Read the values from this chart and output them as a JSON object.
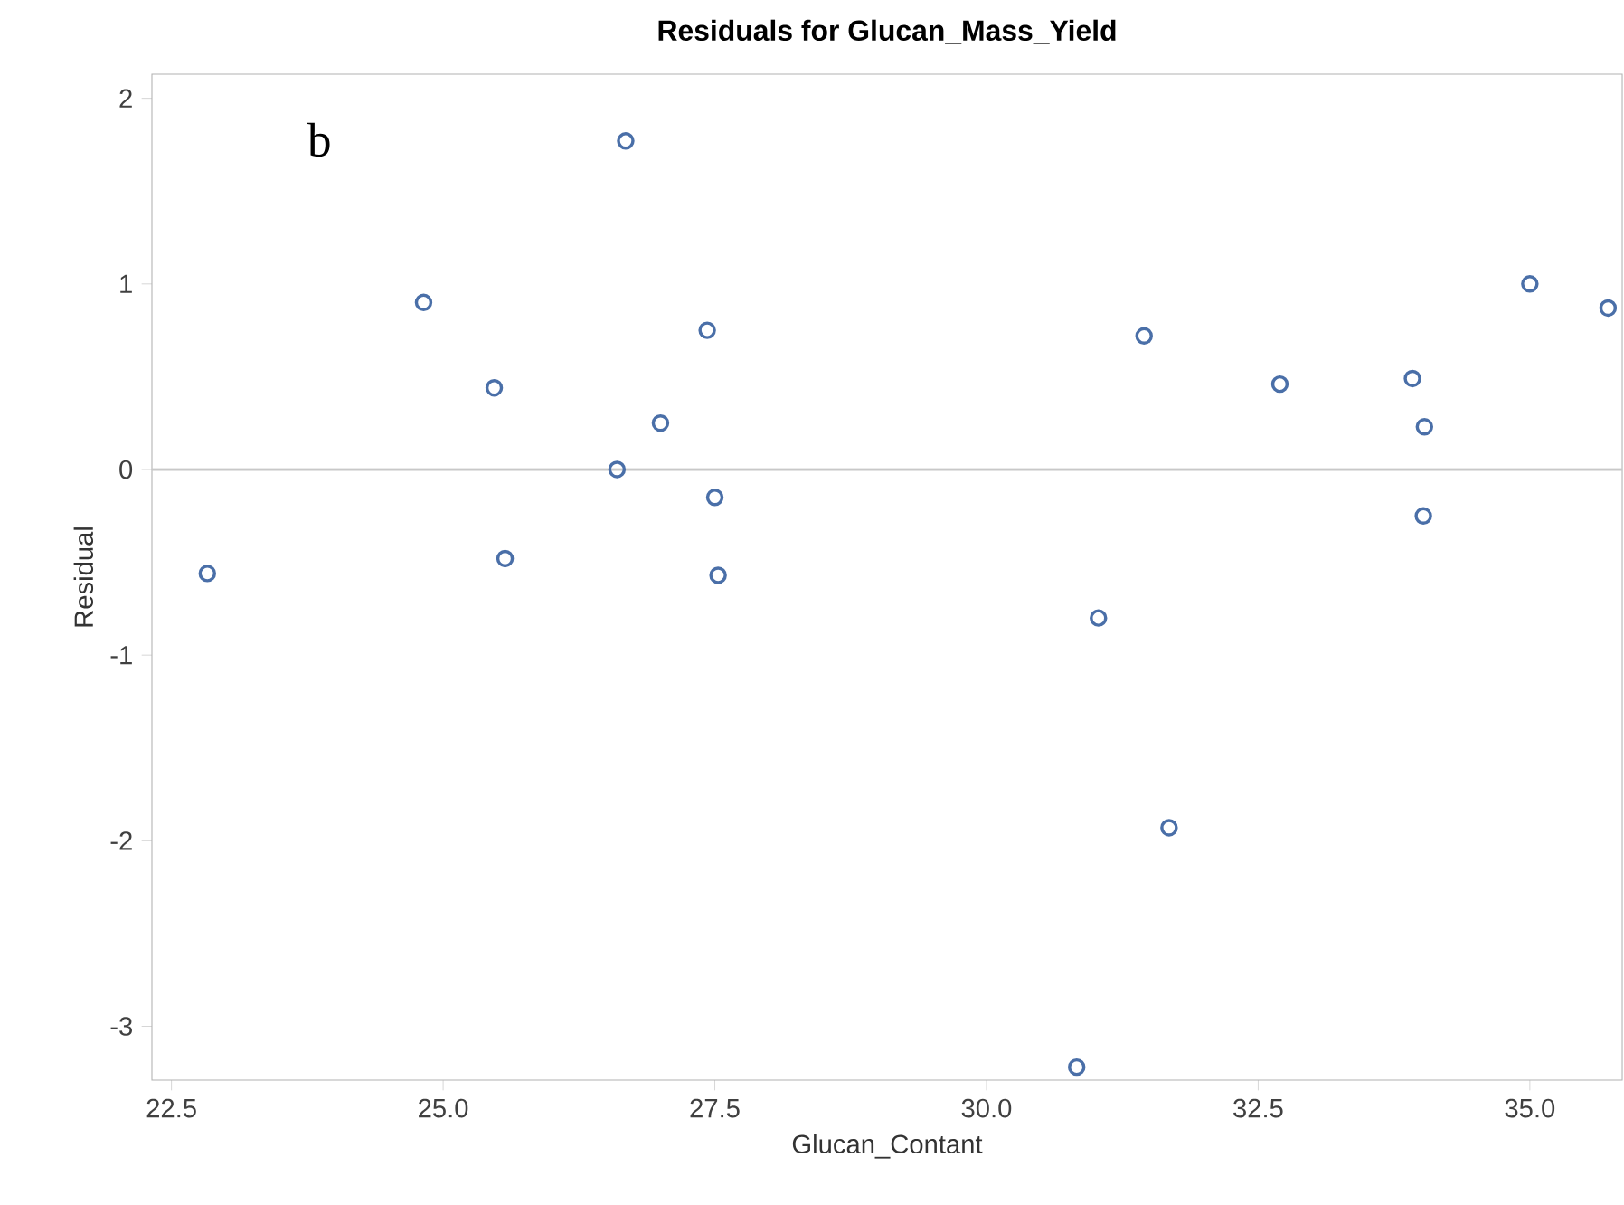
{
  "chart_data": {
    "type": "scatter",
    "title": "Residuals for Glucan_Mass_Yield",
    "xlabel": "Glucan_Contant",
    "ylabel": "Residual",
    "annotations": [
      "b"
    ],
    "x": [
      22.83,
      24.82,
      25.47,
      25.57,
      26.68,
      26.6,
      27.0,
      27.43,
      27.5,
      27.53,
      31.03,
      31.45,
      31.68,
      30.83,
      32.7,
      33.92,
      34.03,
      34.02,
      35.0,
      35.72
    ],
    "series": [
      {
        "color": "#4a6fa8",
        "values": [
          -0.56,
          0.9,
          0.44,
          -0.48,
          1.77,
          0.0,
          0.25,
          0.75,
          -0.15,
          -0.57,
          -0.8,
          0.72,
          -1.93,
          -3.22,
          0.46,
          0.49,
          0.23,
          -0.25,
          1.0,
          0.87
        ]
      }
    ],
    "xlim": [
      22.32,
      35.85
    ],
    "ylim": [
      -3.29,
      2.13
    ],
    "xticks": [
      {
        "value": 22.5,
        "label": "22.5"
      },
      {
        "value": 25,
        "label": "25.0"
      },
      {
        "value": 27.5,
        "label": "27.5"
      },
      {
        "value": 30,
        "label": "30.0"
      },
      {
        "value": 32.5,
        "label": "32.5"
      },
      {
        "value": 35,
        "label": "35.0"
      }
    ],
    "yticks": [
      -3,
      -2,
      -1,
      0,
      1,
      2
    ],
    "ref_lines": [
      {
        "axis": "y",
        "value": 0,
        "color": "#c8c8c8"
      }
    ],
    "marker": "circle"
  }
}
